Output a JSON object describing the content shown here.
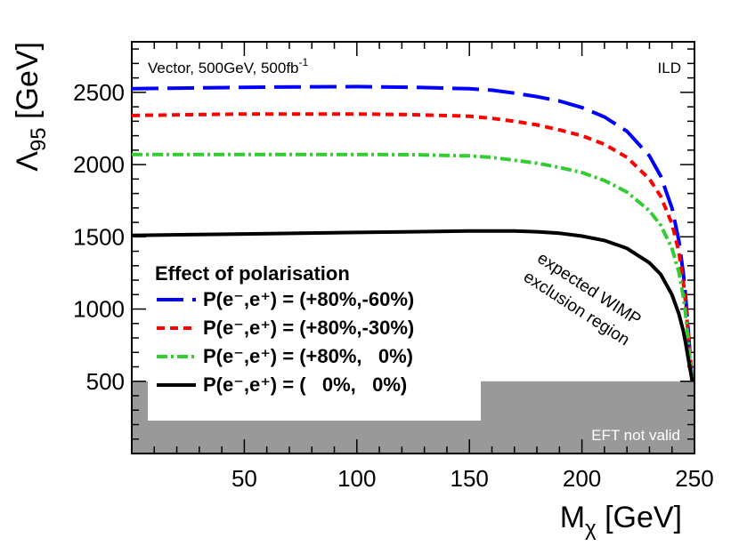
{
  "chart_data": {
    "type": "line",
    "title": "",
    "annotation_top_left": {
      "text": "Vector, 500GeV, 500fb",
      "superscript": "-1"
    },
    "annotation_top_right": "ILD",
    "xlabel": {
      "main": "M",
      "sub": "χ",
      "unit": " [GeV]"
    },
    "ylabel": {
      "main": "Λ",
      "sub": "95",
      "unit": " [GeV]"
    },
    "xlim": [
      0,
      250
    ],
    "ylim": [
      0,
      2850
    ],
    "xticks": [
      50,
      100,
      150,
      200,
      250
    ],
    "yticks": [
      500,
      1000,
      1500,
      2000,
      2500
    ],
    "region_annotation": [
      "expected WIMP",
      "exclusion region"
    ],
    "eft_region": {
      "label": "EFT not valid",
      "y_max": 500
    },
    "legend_title": "Effect of polarisation",
    "series": [
      {
        "name": "P(e⁻,e⁺) = (+80%,-60%)",
        "color": "#0000ff",
        "dash": "long-dash",
        "x": [
          0,
          25,
          50,
          75,
          100,
          125,
          150,
          160,
          170,
          180,
          190,
          200,
          210,
          220,
          230,
          235,
          240,
          243,
          245,
          246,
          247,
          248,
          249
        ],
        "y": [
          2525,
          2530,
          2535,
          2538,
          2540,
          2535,
          2525,
          2515,
          2495,
          2470,
          2440,
          2395,
          2330,
          2230,
          2060,
          1920,
          1700,
          1480,
          1250,
          1100,
          900,
          700,
          500
        ]
      },
      {
        "name": "P(e⁻,e⁺) = (+80%,-30%)",
        "color": "#ff0000",
        "dash": "short-dash",
        "x": [
          0,
          25,
          50,
          75,
          100,
          125,
          150,
          160,
          170,
          180,
          190,
          200,
          210,
          220,
          230,
          235,
          240,
          243,
          245,
          246,
          247,
          248,
          249
        ],
        "y": [
          2340,
          2345,
          2350,
          2350,
          2350,
          2345,
          2335,
          2320,
          2300,
          2275,
          2240,
          2200,
          2140,
          2050,
          1900,
          1780,
          1590,
          1400,
          1190,
          1050,
          870,
          680,
          500
        ]
      },
      {
        "name": "P(e⁻,e⁺) = (+80%,   0%)",
        "color": "#33cc33",
        "dash": "dash-dot",
        "x": [
          0,
          25,
          50,
          75,
          100,
          125,
          150,
          160,
          170,
          180,
          190,
          200,
          210,
          220,
          230,
          235,
          240,
          243,
          245,
          246,
          247,
          248,
          249
        ],
        "y": [
          2070,
          2070,
          2070,
          2070,
          2070,
          2068,
          2060,
          2050,
          2030,
          2010,
          1980,
          1945,
          1890,
          1810,
          1680,
          1580,
          1420,
          1260,
          1090,
          970,
          820,
          650,
          500
        ]
      },
      {
        "name": "P(e⁻,e⁺) = (   0%,   0%)",
        "color": "#000000",
        "dash": "solid",
        "x": [
          0,
          25,
          50,
          75,
          100,
          125,
          150,
          160,
          170,
          180,
          190,
          200,
          210,
          220,
          230,
          235,
          240,
          243,
          245,
          246,
          247,
          248,
          249
        ],
        "y": [
          1510,
          1515,
          1520,
          1525,
          1530,
          1535,
          1540,
          1540,
          1540,
          1535,
          1525,
          1505,
          1475,
          1420,
          1320,
          1240,
          1100,
          970,
          850,
          770,
          680,
          590,
          500
        ]
      }
    ]
  }
}
